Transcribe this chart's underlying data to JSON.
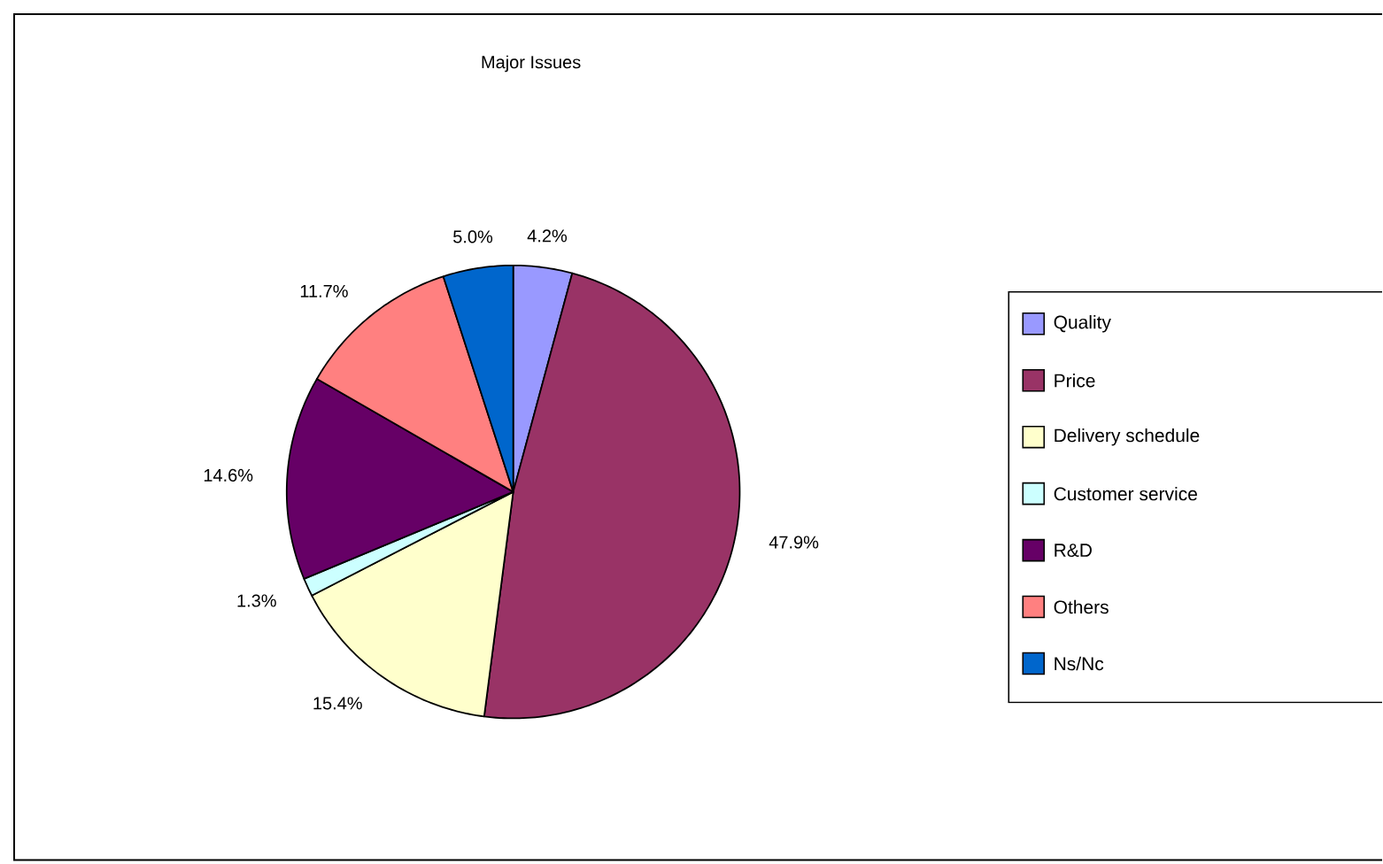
{
  "chart_data": {
    "type": "pie",
    "title": "Major Issues",
    "categories": [
      "Quality",
      "Price",
      "Delivery schedule",
      "Customer service",
      "R&D",
      "Others",
      "Ns/Nc"
    ],
    "values": [
      4.2,
      47.9,
      15.4,
      1.3,
      14.6,
      11.7,
      5.0
    ],
    "value_labels": [
      "4.2%",
      "47.9%",
      "15.4%",
      "1.3%",
      "14.6%",
      "11.7%",
      "5.0%"
    ],
    "colors": [
      "#9999ff",
      "#993366",
      "#ffffcc",
      "#ccffff",
      "#660066",
      "#ff8080",
      "#0066cc"
    ],
    "legend": "right"
  }
}
